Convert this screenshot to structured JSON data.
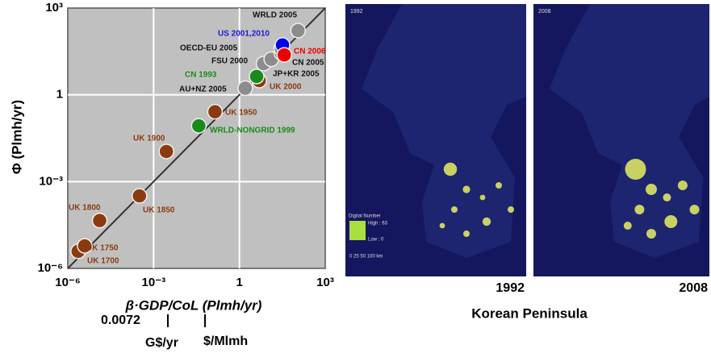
{
  "chart_data": {
    "type": "scatter",
    "xlabel": "β·GDP/CoL (Plmh/yr)",
    "ylabel": "Φ (Plmh/yr)",
    "log_x": true,
    "log_y": true,
    "grid": true,
    "xlim": [
      1e-06,
      1000
    ],
    "ylim": [
      1e-06,
      1000
    ],
    "xticks": [
      {
        "value": 1e-06,
        "label": "10⁻⁶"
      },
      {
        "value": 0.001,
        "label": "10⁻³"
      },
      1,
      {
        "value": 1000,
        "label": "10³"
      }
    ],
    "yticks": [
      {
        "value": 1e-06,
        "label": "10⁻⁶"
      },
      {
        "value": 0.001,
        "label": "10⁻³"
      },
      1,
      {
        "value": 1000,
        "label": "10³"
      }
    ],
    "fit": {
      "color": "#333333",
      "x": [
        1e-06,
        1000
      ],
      "values": [
        1e-06,
        1000
      ]
    },
    "series": [
      {
        "color": "#8b3a10",
        "label_color": "#8b3a10",
        "labels": [
          "UK 1700",
          "UK 1750",
          "UK 1800",
          "UK 1850",
          "UK 1900",
          "UK 1950",
          "UK 2000"
        ],
        "x": [
          2.3e-06,
          3.9e-06,
          1.3e-05,
          0.00032,
          0.0028,
          0.14,
          4.9
        ],
        "values": [
          3.9e-06,
          6e-06,
          4.5e-05,
          0.00032,
          0.011,
          0.26,
          3.1
        ]
      },
      {
        "color": "#1a8a1a",
        "label_color": "#1a8a1a",
        "labels": [
          "CN 1993",
          "WRLD-NONGRID 1999"
        ],
        "x": [
          4,
          0.038
        ],
        "values": [
          4.3,
          0.085
        ]
      },
      {
        "color": "#8c8c8c",
        "label_color": "#111111",
        "labels": [
          "AU+NZ 2005",
          "FSU 2000",
          "JP+KR 2005",
          "CN 2005",
          "OECD-EU 2005",
          "WRLD 2005"
        ],
        "x": [
          1.6,
          7,
          13,
          29,
          29,
          112
        ],
        "values": [
          1.7,
          12,
          17,
          28,
          40,
          166
        ]
      },
      {
        "color": "#0000ee",
        "label_color": "#1a1ae0",
        "labels": [
          "US 2001,2010"
        ],
        "x": [
          32
        ],
        "values": [
          53
        ]
      },
      {
        "color": "#ee0000",
        "label_color": "#ee0000",
        "labels": [
          "CN 2006"
        ],
        "x": [
          37
        ],
        "values": [
          24
        ]
      }
    ],
    "notes": {
      "factor": "0.0072",
      "unit1": "G$/yr",
      "unit2": "$/Mlmh"
    }
  },
  "maps": {
    "title": "Korean Peninsula",
    "panels": [
      {
        "year": "1992",
        "caption": "1992"
      },
      {
        "year": "2008",
        "caption": "2008"
      }
    ],
    "legend": {
      "title": "Digital Number",
      "high": "High : 63",
      "low": "Low : 0",
      "scale": "0  25 50    100 km"
    }
  }
}
